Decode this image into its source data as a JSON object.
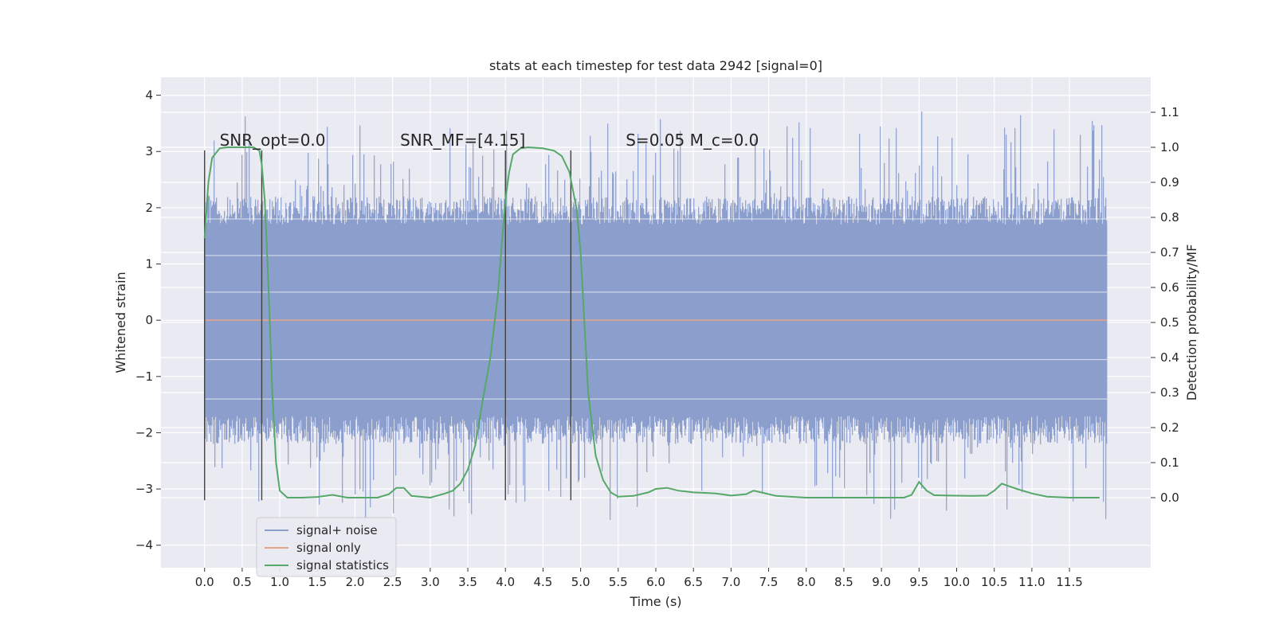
{
  "chart_data": {
    "type": "line",
    "title": "stats at each timestep for test data 2942 [signal=0]",
    "xlabel": "Time (s)",
    "ylabel": "Whitened strain",
    "y2label": "Detection probability/MF",
    "xlim": [
      -0.58,
      12.58
    ],
    "ylim": [
      -4.4,
      4.32
    ],
    "y2lim": [
      -0.2,
      1.2
    ],
    "x_ticks": [
      0.0,
      0.5,
      1.0,
      1.5,
      2.0,
      2.5,
      3.0,
      3.5,
      4.0,
      4.5,
      5.0,
      5.5,
      6.0,
      6.5,
      7.0,
      7.5,
      8.0,
      8.5,
      9.0,
      9.5,
      10.0,
      10.5,
      11.0,
      11.5
    ],
    "x_tick_labels": [
      "0.0",
      "0.5",
      "1.0",
      "1.5",
      "2.0",
      "2.5",
      "3.0",
      "3.5",
      "4.0",
      "4.5",
      "5.0",
      "5.5",
      "6.0",
      "6.5",
      "7.0",
      "7.5",
      "8.0",
      "8.5",
      "9.0",
      "9.5",
      "10.0",
      "10.5",
      "11.0",
      "11.5"
    ],
    "y_ticks": [
      -4,
      -3,
      -2,
      -1,
      0,
      1,
      2,
      3,
      4
    ],
    "y_tick_labels": [
      "−4",
      "−3",
      "−2",
      "−1",
      "0",
      "1",
      "2",
      "3",
      "4"
    ],
    "y2_ticks": [
      0.0,
      0.1,
      0.2,
      0.3,
      0.4,
      0.5,
      0.6,
      0.7,
      0.8,
      0.9,
      1.0,
      1.1
    ],
    "y2_tick_labels": [
      "0.0",
      "0.1",
      "0.2",
      "0.3",
      "0.4",
      "0.5",
      "0.6",
      "0.7",
      "0.8",
      "0.9",
      "1.0",
      "1.1"
    ],
    "grid": true,
    "legend_position": "bottom-left",
    "annotations": [
      {
        "text": "SNR_opt=0.0",
        "x": 0.2,
        "y": 3.1
      },
      {
        "text": "SNR_MF=[4.15]",
        "x": 2.6,
        "y": 3.1
      },
      {
        "text": "S=0.05   M_c=0.0",
        "x": 5.6,
        "y": 3.1
      }
    ],
    "vertical_lines": {
      "x": [
        0.0,
        0.76,
        4.0,
        4.87
      ],
      "y_range": [
        -3.2,
        3.02
      ],
      "color": "#404040"
    },
    "series": [
      {
        "name": "signal+ noise",
        "color": "#8c9fcc",
        "axis": "left",
        "x_range": [
          0.0,
          12.0
        ],
        "typical_range": [
          -1.8,
          1.8
        ],
        "peak_range": [
          -3.9,
          3.9
        ]
      },
      {
        "name": "signal only",
        "color": "#e1a48c",
        "axis": "left",
        "x": [
          0.0,
          12.0
        ],
        "y": [
          0.0,
          0.0
        ]
      },
      {
        "name": "signal statistics",
        "color": "#55a868",
        "axis": "right",
        "x": [
          0.0,
          0.05,
          0.1,
          0.2,
          0.3,
          0.5,
          0.65,
          0.73,
          0.76,
          0.8,
          0.85,
          0.9,
          0.95,
          1.0,
          1.1,
          1.3,
          1.5,
          1.7,
          1.9,
          2.1,
          2.3,
          2.45,
          2.55,
          2.65,
          2.75,
          3.0,
          3.2,
          3.3,
          3.4,
          3.5,
          3.6,
          3.7,
          3.8,
          3.9,
          3.95,
          4.0,
          4.05,
          4.1,
          4.2,
          4.3,
          4.5,
          4.65,
          4.75,
          4.85,
          4.95,
          5.0,
          5.05,
          5.1,
          5.2,
          5.3,
          5.4,
          5.5,
          5.7,
          5.9,
          6.0,
          6.15,
          6.3,
          6.5,
          6.8,
          7.0,
          7.2,
          7.3,
          7.4,
          7.6,
          8.0,
          8.5,
          9.0,
          9.3,
          9.4,
          9.5,
          9.6,
          9.7,
          9.9,
          10.2,
          10.4,
          10.5,
          10.6,
          10.8,
          11.0,
          11.2,
          11.5,
          11.9
        ],
        "y": [
          0.74,
          0.9,
          0.97,
          0.997,
          1.0,
          1.0,
          1.0,
          0.99,
          0.95,
          0.85,
          0.6,
          0.3,
          0.1,
          0.02,
          0.0,
          0.0,
          0.002,
          0.008,
          0.0,
          0.0,
          0.0,
          0.01,
          0.028,
          0.028,
          0.005,
          0.0,
          0.012,
          0.02,
          0.04,
          0.08,
          0.15,
          0.28,
          0.4,
          0.58,
          0.72,
          0.85,
          0.93,
          0.98,
          0.997,
          1.0,
          0.997,
          0.99,
          0.975,
          0.93,
          0.82,
          0.7,
          0.5,
          0.3,
          0.12,
          0.05,
          0.015,
          0.003,
          0.005,
          0.015,
          0.025,
          0.028,
          0.02,
          0.015,
          0.012,
          0.006,
          0.01,
          0.02,
          0.015,
          0.005,
          0.0,
          0.0,
          0.0,
          0.0,
          0.008,
          0.045,
          0.02,
          0.007,
          0.006,
          0.005,
          0.006,
          0.02,
          0.04,
          0.025,
          0.012,
          0.003,
          0.0,
          0.0
        ]
      }
    ]
  }
}
